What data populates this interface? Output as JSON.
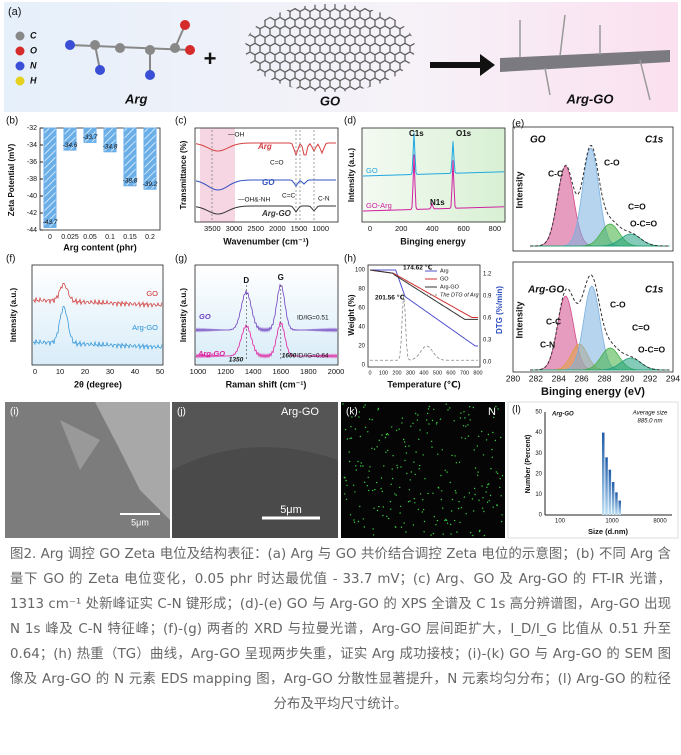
{
  "chart_data": {
    "type": "bar",
    "panel_label": "(b)",
    "y_label": "Zeta Potential (mV)",
    "x_label": "Arg content (phr)",
    "categories": [
      "0",
      "0.025",
      "0.05",
      "0.1",
      "0.15",
      "0.2"
    ],
    "values": [
      -43.7,
      -34.6,
      -33.7,
      -34.8,
      -38.8,
      -39.2
    ],
    "ylim": [
      -44,
      -32
    ],
    "yticks": [
      -32,
      -34,
      -36,
      -38,
      -40,
      -42,
      -44
    ],
    "color": "#6aaee8"
  },
  "panel_a": {
    "label": "(a)",
    "legend": [
      "C",
      "O",
      "N",
      "H"
    ],
    "molecule": "Arg",
    "plus": "+",
    "sheet": "GO",
    "product": "Arg-GO"
  },
  "panel_c": {
    "label": "(c)",
    "y_label": "Transmittance (%)",
    "x_label": "Wavenumber (cm⁻¹)",
    "xticks": [
      3500,
      3000,
      2500,
      2000,
      1500,
      1000
    ],
    "curves": [
      "Arg",
      "GO",
      "Arg-GO"
    ],
    "annotations": [
      "—OH",
      "C=O",
      "C=C",
      "C-N",
      "—OH&-NH"
    ]
  },
  "panel_d": {
    "label": "(d)",
    "y_label": "Intensity (a.u.)",
    "x_label": "Binging energy",
    "xticks": [
      0,
      200,
      400,
      600,
      800
    ],
    "peaks": [
      "C1s",
      "O1s",
      "N1s"
    ],
    "curves": [
      "GO",
      "GO-Arg"
    ]
  },
  "panel_e": {
    "label": "(e)",
    "top": {
      "sample": "GO",
      "core": "C1s",
      "y_label": "Intensity",
      "peaks": [
        "C-C",
        "C-O",
        "C=O",
        "O-C=O"
      ]
    },
    "bottom": {
      "sample": "Arg-GO",
      "core": "C1s",
      "y_label": "Intensity",
      "peaks": [
        "C-C",
        "C-O",
        "C-N",
        "C=O",
        "O-C=O"
      ]
    },
    "x_label": "Binging energy (eV)",
    "xticks": [
      280,
      282,
      284,
      286,
      288,
      290,
      292,
      294
    ]
  },
  "panel_f": {
    "label": "(f)",
    "y_label": "Intensity (a.u.)",
    "x_label": "2θ (degree)",
    "xticks": [
      0,
      10,
      20,
      30,
      40,
      50
    ],
    "curves": [
      "GO",
      "Arg-GO"
    ]
  },
  "panel_g": {
    "label": "(g)",
    "y_label": "Intensity (a.u.)",
    "x_label": "Raman shift (cm⁻¹)",
    "xticks": [
      1000,
      1200,
      1400,
      1600,
      1800,
      2000
    ],
    "curves": [
      "GO",
      "Arg-GO"
    ],
    "bands": [
      "D",
      "G"
    ],
    "ratios": [
      "ID/IG=0.51",
      "ID/IG=0.64"
    ],
    "positions": [
      "1350",
      "1600"
    ]
  },
  "panel_h": {
    "label": "(h)",
    "y_label": "Weight (%)",
    "y2_label": "DTG (%/min)",
    "x_label": "Temperature (℃)",
    "xticks": [
      0,
      100,
      200,
      300,
      400,
      500,
      600,
      700,
      800
    ],
    "yticks": [
      0,
      20,
      40,
      60,
      80,
      100
    ],
    "y2ticks": [
      "0.0",
      "0.3",
      "0.6",
      "0.9",
      "1.2"
    ],
    "legend": [
      "Arg",
      "GO",
      "Arg-GO",
      "The DTG of Arg"
    ],
    "annotations": [
      "174.62 ℃",
      "201.56 ℃"
    ]
  },
  "panel_i": {
    "label": "(i)",
    "scale": "5μm"
  },
  "panel_j": {
    "label": "(j)",
    "sample": "Arg-GO",
    "scale": "5μm"
  },
  "panel_k": {
    "label": "(k)",
    "element": "N"
  },
  "panel_l": {
    "label": "(l)",
    "sample": "Arg-GO",
    "stat_label": "Average size",
    "stat_value": "885.0 nm",
    "y_label": "Number (Percent)",
    "x_label": "Size (d.nm)",
    "xticks": [
      "100",
      "1000",
      "8000"
    ],
    "yticks": [
      0,
      10,
      20,
      30,
      40,
      50
    ]
  },
  "caption": "图2. Arg 调控 GO Zeta 电位及结构表征：(a) Arg 与 GO 共价结合调控 Zeta 电位的示意图；(b) 不同 Arg 含量下 GO 的 Zeta 电位变化，0.05 phr 时达最优值 - 33.7 mV；(c) Arg、GO 及 Arg-GO 的 FT-IR 光谱，1313 cm⁻¹ 处新峰证实 C-N 键形成；(d)-(e) GO 与 Arg-GO 的 XPS 全谱及 C 1s 高分辨谱图，Arg-GO 出现 N 1s 峰及 C-N 特征峰；(f)-(g) 两者的 XRD 与拉曼光谱，Arg-GO 层间距扩大，I_D/I_G 比值从 0.51 升至 0.64；(h) 热重（TG）曲线，Arg-GO 呈现两步失重，证实 Arg 成功接枝；(i)-(k) GO 与 Arg-GO 的 SEM 图像及 Arg-GO 的 N 元素 EDS mapping 图，Arg-GO 分散性显著提升，N 元素均匀分布；(l) Arg-GO 的粒径分布及平均尺寸统计。"
}
